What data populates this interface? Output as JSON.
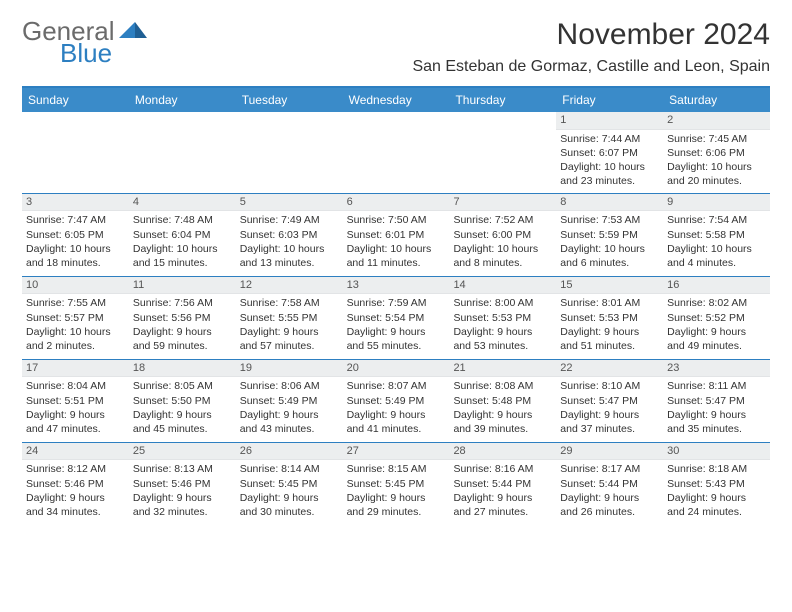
{
  "brand": {
    "line1": "General",
    "line2": "Blue"
  },
  "colors": {
    "accent": "#3a8bc9",
    "header_bg": "#3a8bc9",
    "row_divider": "#2d7fc1",
    "band_bg": "#eceeef",
    "text": "#333333",
    "logo_grey": "#6b6b6b",
    "logo_blue": "#2d7fc1"
  },
  "title": "November 2024",
  "location": "San Esteban de Gormaz, Castille and Leon, Spain",
  "weekdays": [
    "Sunday",
    "Monday",
    "Tuesday",
    "Wednesday",
    "Thursday",
    "Friday",
    "Saturday"
  ],
  "weeks": [
    [
      {
        "n": "",
        "sr": "",
        "ss": "",
        "dl": ""
      },
      {
        "n": "",
        "sr": "",
        "ss": "",
        "dl": ""
      },
      {
        "n": "",
        "sr": "",
        "ss": "",
        "dl": ""
      },
      {
        "n": "",
        "sr": "",
        "ss": "",
        "dl": ""
      },
      {
        "n": "",
        "sr": "",
        "ss": "",
        "dl": ""
      },
      {
        "n": "1",
        "sr": "Sunrise: 7:44 AM",
        "ss": "Sunset: 6:07 PM",
        "dl": "Daylight: 10 hours and 23 minutes."
      },
      {
        "n": "2",
        "sr": "Sunrise: 7:45 AM",
        "ss": "Sunset: 6:06 PM",
        "dl": "Daylight: 10 hours and 20 minutes."
      }
    ],
    [
      {
        "n": "3",
        "sr": "Sunrise: 7:47 AM",
        "ss": "Sunset: 6:05 PM",
        "dl": "Daylight: 10 hours and 18 minutes."
      },
      {
        "n": "4",
        "sr": "Sunrise: 7:48 AM",
        "ss": "Sunset: 6:04 PM",
        "dl": "Daylight: 10 hours and 15 minutes."
      },
      {
        "n": "5",
        "sr": "Sunrise: 7:49 AM",
        "ss": "Sunset: 6:03 PM",
        "dl": "Daylight: 10 hours and 13 minutes."
      },
      {
        "n": "6",
        "sr": "Sunrise: 7:50 AM",
        "ss": "Sunset: 6:01 PM",
        "dl": "Daylight: 10 hours and 11 minutes."
      },
      {
        "n": "7",
        "sr": "Sunrise: 7:52 AM",
        "ss": "Sunset: 6:00 PM",
        "dl": "Daylight: 10 hours and 8 minutes."
      },
      {
        "n": "8",
        "sr": "Sunrise: 7:53 AM",
        "ss": "Sunset: 5:59 PM",
        "dl": "Daylight: 10 hours and 6 minutes."
      },
      {
        "n": "9",
        "sr": "Sunrise: 7:54 AM",
        "ss": "Sunset: 5:58 PM",
        "dl": "Daylight: 10 hours and 4 minutes."
      }
    ],
    [
      {
        "n": "10",
        "sr": "Sunrise: 7:55 AM",
        "ss": "Sunset: 5:57 PM",
        "dl": "Daylight: 10 hours and 2 minutes."
      },
      {
        "n": "11",
        "sr": "Sunrise: 7:56 AM",
        "ss": "Sunset: 5:56 PM",
        "dl": "Daylight: 9 hours and 59 minutes."
      },
      {
        "n": "12",
        "sr": "Sunrise: 7:58 AM",
        "ss": "Sunset: 5:55 PM",
        "dl": "Daylight: 9 hours and 57 minutes."
      },
      {
        "n": "13",
        "sr": "Sunrise: 7:59 AM",
        "ss": "Sunset: 5:54 PM",
        "dl": "Daylight: 9 hours and 55 minutes."
      },
      {
        "n": "14",
        "sr": "Sunrise: 8:00 AM",
        "ss": "Sunset: 5:53 PM",
        "dl": "Daylight: 9 hours and 53 minutes."
      },
      {
        "n": "15",
        "sr": "Sunrise: 8:01 AM",
        "ss": "Sunset: 5:53 PM",
        "dl": "Daylight: 9 hours and 51 minutes."
      },
      {
        "n": "16",
        "sr": "Sunrise: 8:02 AM",
        "ss": "Sunset: 5:52 PM",
        "dl": "Daylight: 9 hours and 49 minutes."
      }
    ],
    [
      {
        "n": "17",
        "sr": "Sunrise: 8:04 AM",
        "ss": "Sunset: 5:51 PM",
        "dl": "Daylight: 9 hours and 47 minutes."
      },
      {
        "n": "18",
        "sr": "Sunrise: 8:05 AM",
        "ss": "Sunset: 5:50 PM",
        "dl": "Daylight: 9 hours and 45 minutes."
      },
      {
        "n": "19",
        "sr": "Sunrise: 8:06 AM",
        "ss": "Sunset: 5:49 PM",
        "dl": "Daylight: 9 hours and 43 minutes."
      },
      {
        "n": "20",
        "sr": "Sunrise: 8:07 AM",
        "ss": "Sunset: 5:49 PM",
        "dl": "Daylight: 9 hours and 41 minutes."
      },
      {
        "n": "21",
        "sr": "Sunrise: 8:08 AM",
        "ss": "Sunset: 5:48 PM",
        "dl": "Daylight: 9 hours and 39 minutes."
      },
      {
        "n": "22",
        "sr": "Sunrise: 8:10 AM",
        "ss": "Sunset: 5:47 PM",
        "dl": "Daylight: 9 hours and 37 minutes."
      },
      {
        "n": "23",
        "sr": "Sunrise: 8:11 AM",
        "ss": "Sunset: 5:47 PM",
        "dl": "Daylight: 9 hours and 35 minutes."
      }
    ],
    [
      {
        "n": "24",
        "sr": "Sunrise: 8:12 AM",
        "ss": "Sunset: 5:46 PM",
        "dl": "Daylight: 9 hours and 34 minutes."
      },
      {
        "n": "25",
        "sr": "Sunrise: 8:13 AM",
        "ss": "Sunset: 5:46 PM",
        "dl": "Daylight: 9 hours and 32 minutes."
      },
      {
        "n": "26",
        "sr": "Sunrise: 8:14 AM",
        "ss": "Sunset: 5:45 PM",
        "dl": "Daylight: 9 hours and 30 minutes."
      },
      {
        "n": "27",
        "sr": "Sunrise: 8:15 AM",
        "ss": "Sunset: 5:45 PM",
        "dl": "Daylight: 9 hours and 29 minutes."
      },
      {
        "n": "28",
        "sr": "Sunrise: 8:16 AM",
        "ss": "Sunset: 5:44 PM",
        "dl": "Daylight: 9 hours and 27 minutes."
      },
      {
        "n": "29",
        "sr": "Sunrise: 8:17 AM",
        "ss": "Sunset: 5:44 PM",
        "dl": "Daylight: 9 hours and 26 minutes."
      },
      {
        "n": "30",
        "sr": "Sunrise: 8:18 AM",
        "ss": "Sunset: 5:43 PM",
        "dl": "Daylight: 9 hours and 24 minutes."
      }
    ]
  ]
}
